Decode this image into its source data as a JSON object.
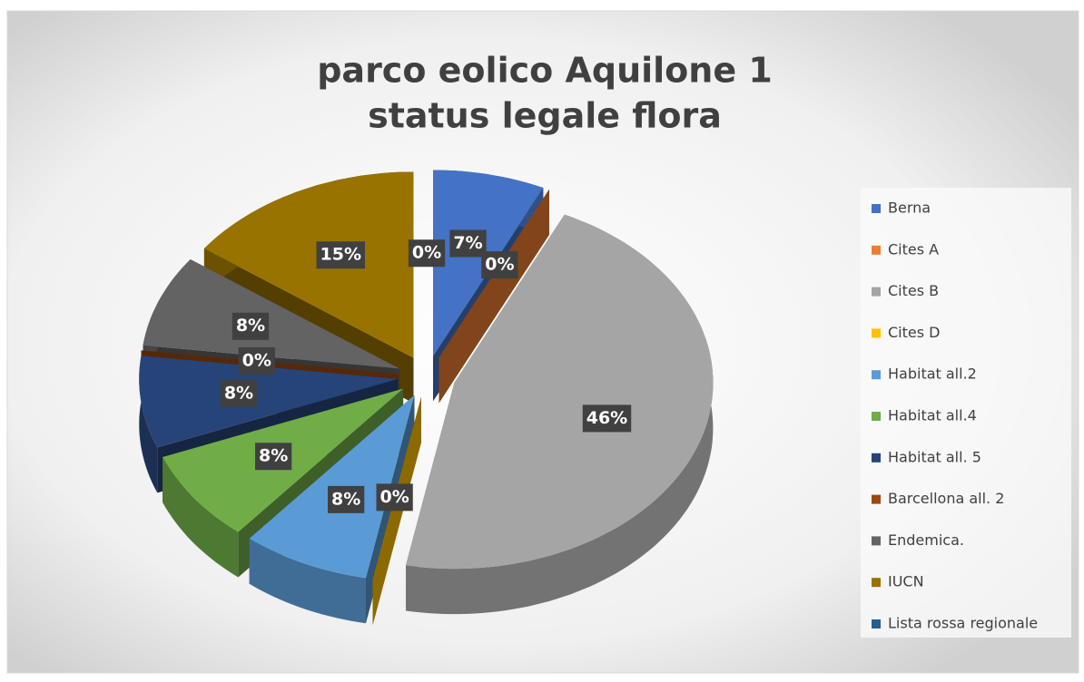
{
  "chart_data": {
    "type": "pie3d",
    "title": [
      "parco eolico Aquilone 1",
      "status legale flora"
    ],
    "categories": [
      "Berna",
      "Cites A",
      "Cites B",
      "Cites D",
      "Habitat all.2",
      "Habitat all.4",
      "Habitat all. 5",
      "Barcellona all. 2",
      "Endemica.",
      "IUCN",
      "Lista rossa regionale"
    ],
    "values": [
      7,
      0,
      46,
      0,
      8,
      8,
      8,
      0,
      8,
      15,
      0
    ],
    "value_labels": [
      "7%",
      "0%",
      "46%",
      "0%",
      "8%",
      "8%",
      "8%",
      "0%",
      "8%",
      "15%",
      "0%"
    ],
    "colors": [
      "#4472c4",
      "#ed7d31",
      "#a5a5a5",
      "#ffc000",
      "#5b9bd5",
      "#70ad47",
      "#264478",
      "#9e480e",
      "#636363",
      "#997300",
      "#255e91"
    ],
    "legend": "right"
  }
}
